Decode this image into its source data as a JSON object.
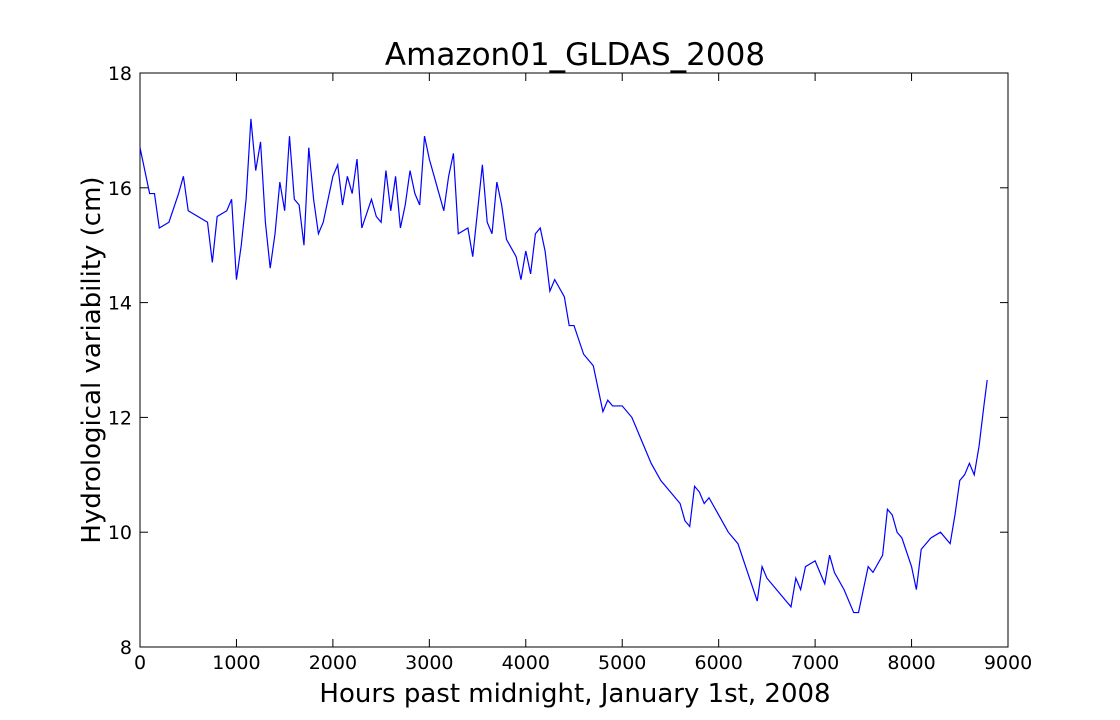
{
  "chart_data": {
    "type": "line",
    "title": "Amazon01_GLDAS_2008",
    "x_label": "Hours past midnight, January 1st, 2008",
    "y_label": "Hydrological variability (cm)",
    "xlim": [
      0,
      9000
    ],
    "xticks": [
      0,
      1000,
      2000,
      3000,
      4000,
      5000,
      6000,
      7000,
      8000,
      9000
    ],
    "ylim": [
      8,
      18
    ],
    "yticks": [
      8,
      10,
      12,
      14,
      16,
      18
    ],
    "series": [
      {
        "color": "#0000ff",
        "x": [
          0,
          100,
          150,
          200,
          300,
          400,
          450,
          500,
          600,
          700,
          750,
          800,
          900,
          950,
          1000,
          1050,
          1100,
          1150,
          1200,
          1250,
          1300,
          1350,
          1400,
          1450,
          1500,
          1550,
          1600,
          1650,
          1700,
          1750,
          1800,
          1850,
          1900,
          2000,
          2050,
          2100,
          2150,
          2200,
          2250,
          2300,
          2400,
          2450,
          2500,
          2550,
          2600,
          2650,
          2700,
          2750,
          2800,
          2850,
          2900,
          2950,
          3000,
          3050,
          3100,
          3150,
          3200,
          3250,
          3300,
          3400,
          3450,
          3500,
          3550,
          3600,
          3650,
          3700,
          3750,
          3800,
          3900,
          3950,
          4000,
          4050,
          4100,
          4150,
          4200,
          4250,
          4300,
          4400,
          4450,
          4500,
          4600,
          4700,
          4800,
          4850,
          4900,
          5000,
          5100,
          5200,
          5300,
          5400,
          5500,
          5600,
          5650,
          5700,
          5750,
          5800,
          5850,
          5900,
          6000,
          6100,
          6200,
          6300,
          6400,
          6450,
          6500,
          6600,
          6700,
          6750,
          6800,
          6850,
          6900,
          7000,
          7050,
          7100,
          7150,
          7200,
          7300,
          7400,
          7450,
          7500,
          7550,
          7600,
          7700,
          7750,
          7800,
          7850,
          7900,
          8000,
          8050,
          8100,
          8200,
          8300,
          8400,
          8450,
          8500,
          8550,
          8600,
          8650,
          8700,
          8750,
          8784
        ],
        "values": [
          16.7,
          15.9,
          15.9,
          15.3,
          15.4,
          15.9,
          16.2,
          15.6,
          15.5,
          15.4,
          14.7,
          15.5,
          15.6,
          15.8,
          14.4,
          15.0,
          15.8,
          17.2,
          16.3,
          16.8,
          15.4,
          14.6,
          15.2,
          16.1,
          15.6,
          16.9,
          15.8,
          15.7,
          15.0,
          16.7,
          15.8,
          15.2,
          15.4,
          16.2,
          16.4,
          15.7,
          16.2,
          15.9,
          16.5,
          15.3,
          15.8,
          15.5,
          15.4,
          16.3,
          15.6,
          16.2,
          15.3,
          15.7,
          16.3,
          15.9,
          15.7,
          16.9,
          16.5,
          16.2,
          15.9,
          15.6,
          16.2,
          16.6,
          15.2,
          15.3,
          14.8,
          15.6,
          16.4,
          15.4,
          15.2,
          16.1,
          15.7,
          15.1,
          14.8,
          14.4,
          14.9,
          14.5,
          15.2,
          15.3,
          14.9,
          14.2,
          14.4,
          14.1,
          13.6,
          13.6,
          13.1,
          12.9,
          12.1,
          12.3,
          12.2,
          12.2,
          12.0,
          11.6,
          11.2,
          10.9,
          10.7,
          10.5,
          10.2,
          10.1,
          10.8,
          10.7,
          10.5,
          10.6,
          10.3,
          10.0,
          9.8,
          9.3,
          8.8,
          9.4,
          9.2,
          9.0,
          8.8,
          8.7,
          9.2,
          9.0,
          9.4,
          9.5,
          9.3,
          9.1,
          9.6,
          9.3,
          9.0,
          8.6,
          8.6,
          9.0,
          9.4,
          9.3,
          9.6,
          10.4,
          10.3,
          10.0,
          9.9,
          9.4,
          9.0,
          9.7,
          9.9,
          10.0,
          9.8,
          10.3,
          10.9,
          11.0,
          11.2,
          11.0,
          11.5,
          12.2,
          12.65
        ]
      }
    ]
  }
}
